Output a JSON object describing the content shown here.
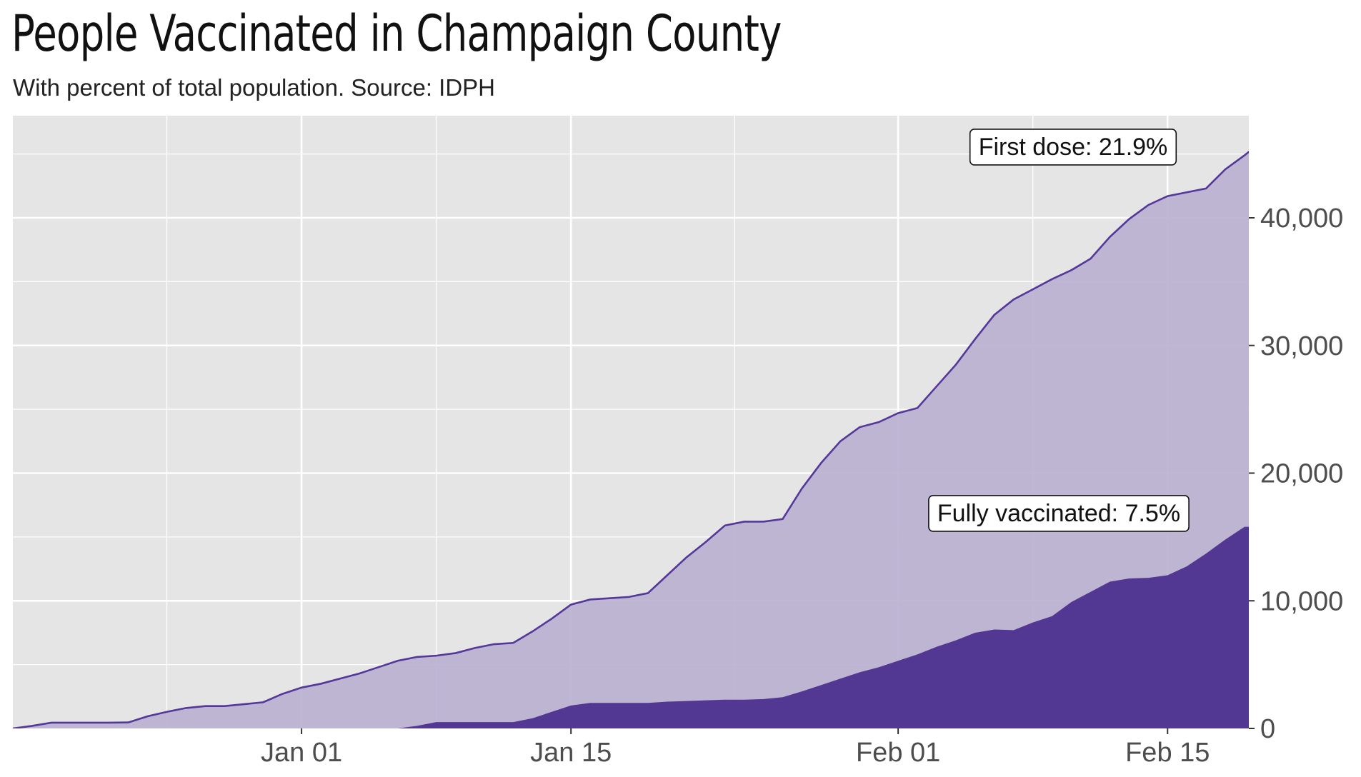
{
  "title": "People Vaccinated in Champaign County",
  "subtitle": "With percent of total population. Source: IDPH",
  "colors": {
    "panel_bg": "#e5e5e5",
    "grid": "#ffffff",
    "first_dose_fill": "#bbb1d1",
    "first_dose_line": "#54379a",
    "fully_fill": "#533893"
  },
  "chart_data": {
    "type": "area",
    "x_start": "2020-12-17",
    "x_end": "2021-02-19",
    "x_tick_labels": [
      {
        "date": "2021-01-01",
        "label": "Jan 01"
      },
      {
        "date": "2021-01-15",
        "label": "Jan 15"
      },
      {
        "date": "2021-02-01",
        "label": "Feb 01"
      },
      {
        "date": "2021-02-15",
        "label": "Feb 15"
      }
    ],
    "y_ticks": [
      0,
      10000,
      20000,
      30000,
      40000
    ],
    "y_tick_labels": [
      "0",
      "10,000",
      "20,000",
      "30,000",
      "40,000"
    ],
    "ylim": [
      0,
      48000
    ],
    "y_axis_position": "right",
    "grid": true,
    "series": [
      {
        "name": "First dose",
        "annotation": "First dose: 21.9%",
        "points": [
          [
            "2020-12-17",
            0
          ],
          [
            "2020-12-18",
            200
          ],
          [
            "2020-12-19",
            450
          ],
          [
            "2020-12-20",
            450
          ],
          [
            "2020-12-21",
            450
          ],
          [
            "2020-12-22",
            450
          ],
          [
            "2020-12-23",
            470
          ],
          [
            "2020-12-24",
            950
          ],
          [
            "2020-12-25",
            1300
          ],
          [
            "2020-12-26",
            1600
          ],
          [
            "2020-12-27",
            1750
          ],
          [
            "2020-12-28",
            1750
          ],
          [
            "2020-12-29",
            1900
          ],
          [
            "2020-12-30",
            2050
          ],
          [
            "2020-12-31",
            2700
          ],
          [
            "2021-01-01",
            3200
          ],
          [
            "2021-01-02",
            3500
          ],
          [
            "2021-01-03",
            3900
          ],
          [
            "2021-01-04",
            4300
          ],
          [
            "2021-01-05",
            4800
          ],
          [
            "2021-01-06",
            5300
          ],
          [
            "2021-01-07",
            5600
          ],
          [
            "2021-01-08",
            5700
          ],
          [
            "2021-01-09",
            5900
          ],
          [
            "2021-01-10",
            6300
          ],
          [
            "2021-01-11",
            6600
          ],
          [
            "2021-01-12",
            6700
          ],
          [
            "2021-01-13",
            7600
          ],
          [
            "2021-01-14",
            8600
          ],
          [
            "2021-01-15",
            9700
          ],
          [
            "2021-01-16",
            10100
          ],
          [
            "2021-01-17",
            10200
          ],
          [
            "2021-01-18",
            10300
          ],
          [
            "2021-01-19",
            10600
          ],
          [
            "2021-01-20",
            12000
          ],
          [
            "2021-01-21",
            13400
          ],
          [
            "2021-01-22",
            14600
          ],
          [
            "2021-01-23",
            15900
          ],
          [
            "2021-01-24",
            16200
          ],
          [
            "2021-01-25",
            16200
          ],
          [
            "2021-01-26",
            16400
          ],
          [
            "2021-01-27",
            18800
          ],
          [
            "2021-01-28",
            20800
          ],
          [
            "2021-01-29",
            22500
          ],
          [
            "2021-01-30",
            23600
          ],
          [
            "2021-01-31",
            24000
          ],
          [
            "2021-02-01",
            24700
          ],
          [
            "2021-02-02",
            25100
          ],
          [
            "2021-02-03",
            26800
          ],
          [
            "2021-02-04",
            28500
          ],
          [
            "2021-02-05",
            30500
          ],
          [
            "2021-02-06",
            32400
          ],
          [
            "2021-02-07",
            33600
          ],
          [
            "2021-02-08",
            34400
          ],
          [
            "2021-02-09",
            35200
          ],
          [
            "2021-02-10",
            35900
          ],
          [
            "2021-02-11",
            36800
          ],
          [
            "2021-02-12",
            38500
          ],
          [
            "2021-02-13",
            39900
          ],
          [
            "2021-02-14",
            41000
          ],
          [
            "2021-02-15",
            41700
          ],
          [
            "2021-02-16",
            42000
          ],
          [
            "2021-02-17",
            42300
          ],
          [
            "2021-02-18",
            43800
          ],
          [
            "2021-02-19",
            44900
          ],
          [
            "2021-02-20",
            46100
          ]
        ]
      },
      {
        "name": "Fully vaccinated",
        "annotation": "Fully vaccinated: 7.5%",
        "points": [
          [
            "2020-12-17",
            0
          ],
          [
            "2021-01-06",
            0
          ],
          [
            "2021-01-07",
            200
          ],
          [
            "2021-01-08",
            500
          ],
          [
            "2021-01-09",
            500
          ],
          [
            "2021-01-10",
            500
          ],
          [
            "2021-01-11",
            500
          ],
          [
            "2021-01-12",
            500
          ],
          [
            "2021-01-13",
            800
          ],
          [
            "2021-01-14",
            1300
          ],
          [
            "2021-01-15",
            1800
          ],
          [
            "2021-01-16",
            2000
          ],
          [
            "2021-01-17",
            2000
          ],
          [
            "2021-01-18",
            2000
          ],
          [
            "2021-01-19",
            2000
          ],
          [
            "2021-01-20",
            2100
          ],
          [
            "2021-01-21",
            2150
          ],
          [
            "2021-01-22",
            2200
          ],
          [
            "2021-01-23",
            2250
          ],
          [
            "2021-01-24",
            2250
          ],
          [
            "2021-01-25",
            2300
          ],
          [
            "2021-01-26",
            2450
          ],
          [
            "2021-01-27",
            2900
          ],
          [
            "2021-01-28",
            3400
          ],
          [
            "2021-01-29",
            3900
          ],
          [
            "2021-01-30",
            4400
          ],
          [
            "2021-01-31",
            4800
          ],
          [
            "2021-02-01",
            5300
          ],
          [
            "2021-02-02",
            5800
          ],
          [
            "2021-02-03",
            6400
          ],
          [
            "2021-02-04",
            6900
          ],
          [
            "2021-02-05",
            7500
          ],
          [
            "2021-02-06",
            7750
          ],
          [
            "2021-02-07",
            7700
          ],
          [
            "2021-02-08",
            8300
          ],
          [
            "2021-02-09",
            8800
          ],
          [
            "2021-02-10",
            9900
          ],
          [
            "2021-02-11",
            10700
          ],
          [
            "2021-02-12",
            11500
          ],
          [
            "2021-02-13",
            11750
          ],
          [
            "2021-02-14",
            11800
          ],
          [
            "2021-02-15",
            12000
          ],
          [
            "2021-02-16",
            12700
          ],
          [
            "2021-02-17",
            13700
          ],
          [
            "2021-02-18",
            14800
          ],
          [
            "2021-02-19",
            15800
          ],
          [
            "2021-02-20",
            15800
          ]
        ]
      }
    ]
  }
}
